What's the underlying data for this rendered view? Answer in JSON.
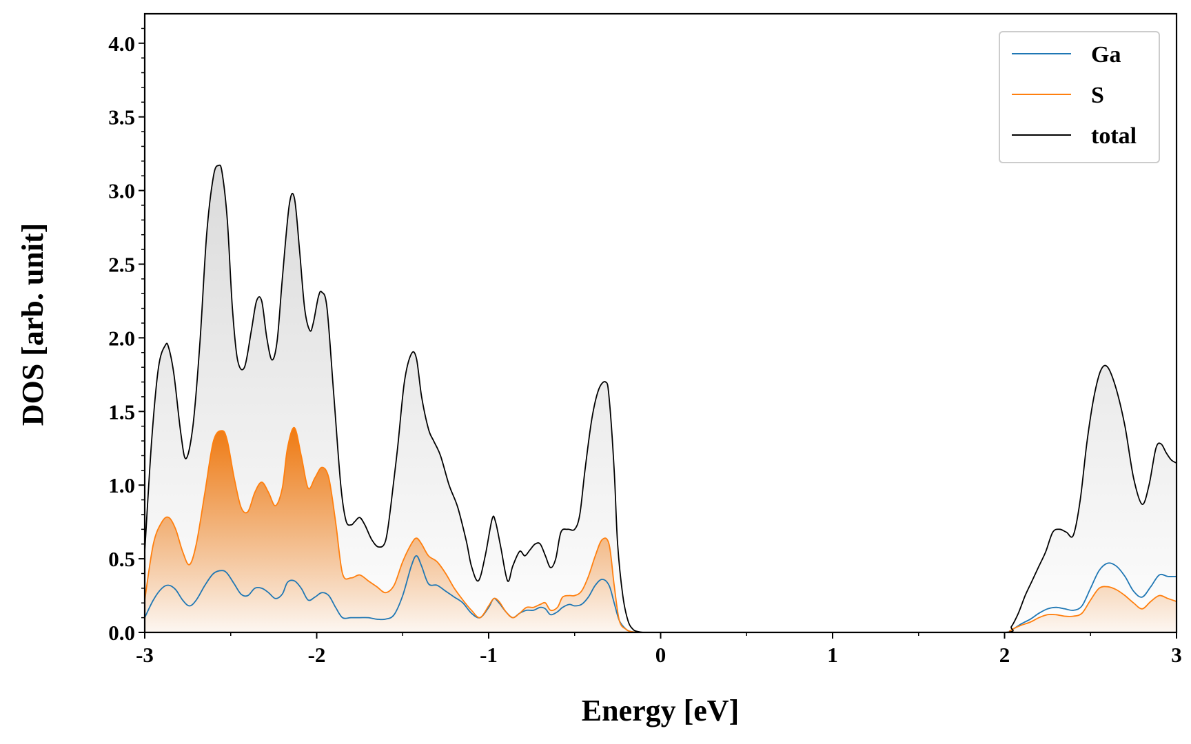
{
  "chart_data": {
    "type": "line",
    "title": "",
    "xlabel": "Energy [eV]",
    "ylabel": "DOS [arb. unit]",
    "xlim": [
      -3,
      3
    ],
    "ylim": [
      0,
      4.2
    ],
    "x_ticks": [
      -3,
      -2,
      -1,
      0,
      1,
      2,
      3
    ],
    "x_tick_labels": [
      "-3",
      "-2",
      "-1",
      "0",
      "1",
      "2",
      "3"
    ],
    "y_ticks": [
      0.0,
      0.5,
      1.0,
      1.5,
      2.0,
      2.5,
      3.0,
      3.5,
      4.0
    ],
    "y_tick_labels": [
      "0.0",
      "0.5",
      "1.0",
      "1.5",
      "2.0",
      "2.5",
      "3.0",
      "3.5",
      "4.0"
    ],
    "grid": false,
    "legend_position": "top-right",
    "series": [
      {
        "name": "Ga",
        "color": "#1f77b4",
        "fill": false,
        "x": [
          -3.0,
          -2.95,
          -2.9,
          -2.86,
          -2.82,
          -2.78,
          -2.74,
          -2.7,
          -2.65,
          -2.6,
          -2.55,
          -2.52,
          -2.48,
          -2.44,
          -2.4,
          -2.36,
          -2.32,
          -2.28,
          -2.24,
          -2.2,
          -2.17,
          -2.13,
          -2.09,
          -2.05,
          -2.01,
          -1.97,
          -1.93,
          -1.89,
          -1.85,
          -1.8,
          -1.75,
          -1.7,
          -1.65,
          -1.6,
          -1.55,
          -1.5,
          -1.45,
          -1.42,
          -1.39,
          -1.35,
          -1.3,
          -1.25,
          -1.2,
          -1.15,
          -1.1,
          -1.05,
          -1.0,
          -0.97,
          -0.94,
          -0.9,
          -0.86,
          -0.82,
          -0.78,
          -0.74,
          -0.7,
          -0.67,
          -0.64,
          -0.6,
          -0.57,
          -0.53,
          -0.5,
          -0.46,
          -0.42,
          -0.38,
          -0.34,
          -0.3,
          -0.27,
          -0.24,
          -0.2,
          -0.17,
          -0.13,
          -0.1,
          -0.05,
          0.0,
          0.5,
          1.0,
          1.5,
          2.0,
          2.03,
          2.06,
          2.1,
          2.15,
          2.2,
          2.25,
          2.3,
          2.35,
          2.4,
          2.45,
          2.5,
          2.55,
          2.6,
          2.65,
          2.7,
          2.75,
          2.8,
          2.85,
          2.9,
          2.95,
          3.0
        ],
        "values": [
          0.1,
          0.22,
          0.3,
          0.32,
          0.29,
          0.22,
          0.18,
          0.22,
          0.32,
          0.4,
          0.42,
          0.4,
          0.33,
          0.26,
          0.25,
          0.3,
          0.3,
          0.27,
          0.23,
          0.26,
          0.34,
          0.35,
          0.3,
          0.22,
          0.24,
          0.27,
          0.25,
          0.17,
          0.1,
          0.1,
          0.1,
          0.1,
          0.09,
          0.09,
          0.12,
          0.25,
          0.45,
          0.52,
          0.45,
          0.33,
          0.32,
          0.28,
          0.24,
          0.2,
          0.13,
          0.1,
          0.17,
          0.23,
          0.2,
          0.14,
          0.1,
          0.13,
          0.15,
          0.15,
          0.17,
          0.16,
          0.12,
          0.14,
          0.17,
          0.19,
          0.18,
          0.19,
          0.24,
          0.32,
          0.36,
          0.32,
          0.2,
          0.08,
          0.02,
          0.005,
          0.0,
          0.0,
          0.0,
          0.0,
          0.0,
          0.0,
          0.0,
          0.0,
          0.01,
          0.03,
          0.06,
          0.09,
          0.13,
          0.16,
          0.17,
          0.16,
          0.15,
          0.18,
          0.3,
          0.42,
          0.47,
          0.45,
          0.38,
          0.28,
          0.24,
          0.31,
          0.39,
          0.38,
          0.38
        ]
      },
      {
        "name": "S",
        "color": "#ff7f0e",
        "fill": true,
        "x": [
          -3.0,
          -2.95,
          -2.9,
          -2.86,
          -2.82,
          -2.78,
          -2.74,
          -2.7,
          -2.65,
          -2.6,
          -2.55,
          -2.52,
          -2.48,
          -2.44,
          -2.4,
          -2.36,
          -2.32,
          -2.28,
          -2.24,
          -2.2,
          -2.17,
          -2.13,
          -2.09,
          -2.05,
          -2.01,
          -1.97,
          -1.93,
          -1.89,
          -1.85,
          -1.8,
          -1.75,
          -1.7,
          -1.65,
          -1.6,
          -1.55,
          -1.5,
          -1.45,
          -1.42,
          -1.39,
          -1.35,
          -1.3,
          -1.25,
          -1.2,
          -1.15,
          -1.1,
          -1.05,
          -1.0,
          -0.97,
          -0.94,
          -0.9,
          -0.86,
          -0.82,
          -0.78,
          -0.74,
          -0.7,
          -0.67,
          -0.64,
          -0.6,
          -0.57,
          -0.53,
          -0.5,
          -0.46,
          -0.42,
          -0.38,
          -0.34,
          -0.3,
          -0.27,
          -0.24,
          -0.2,
          -0.17,
          -0.13,
          -0.1,
          -0.05,
          0.0,
          0.5,
          1.0,
          1.5,
          2.0,
          2.03,
          2.06,
          2.1,
          2.15,
          2.2,
          2.25,
          2.3,
          2.35,
          2.4,
          2.45,
          2.5,
          2.55,
          2.6,
          2.65,
          2.7,
          2.75,
          2.8,
          2.85,
          2.9,
          2.95,
          3.0
        ],
        "values": [
          0.22,
          0.6,
          0.75,
          0.78,
          0.7,
          0.55,
          0.46,
          0.6,
          0.95,
          1.3,
          1.37,
          1.3,
          1.05,
          0.85,
          0.82,
          0.95,
          1.02,
          0.95,
          0.86,
          0.98,
          1.25,
          1.39,
          1.2,
          0.98,
          1.05,
          1.12,
          1.05,
          0.75,
          0.4,
          0.37,
          0.39,
          0.35,
          0.31,
          0.27,
          0.32,
          0.48,
          0.6,
          0.64,
          0.6,
          0.52,
          0.48,
          0.4,
          0.3,
          0.22,
          0.15,
          0.1,
          0.18,
          0.23,
          0.21,
          0.14,
          0.1,
          0.13,
          0.17,
          0.17,
          0.19,
          0.2,
          0.15,
          0.17,
          0.24,
          0.25,
          0.25,
          0.28,
          0.38,
          0.52,
          0.63,
          0.6,
          0.32,
          0.08,
          0.02,
          0.005,
          0.0,
          0.0,
          0.0,
          0.0,
          0.0,
          0.0,
          0.0,
          0.0,
          0.01,
          0.03,
          0.05,
          0.07,
          0.1,
          0.12,
          0.12,
          0.11,
          0.11,
          0.13,
          0.22,
          0.3,
          0.31,
          0.29,
          0.25,
          0.2,
          0.16,
          0.21,
          0.25,
          0.23,
          0.21
        ]
      },
      {
        "name": "total",
        "color": "#000000",
        "fill": true,
        "x": [
          -3.0,
          -2.96,
          -2.92,
          -2.88,
          -2.86,
          -2.83,
          -2.79,
          -2.76,
          -2.72,
          -2.68,
          -2.64,
          -2.6,
          -2.57,
          -2.55,
          -2.52,
          -2.49,
          -2.46,
          -2.42,
          -2.38,
          -2.35,
          -2.32,
          -2.29,
          -2.26,
          -2.23,
          -2.2,
          -2.16,
          -2.13,
          -2.1,
          -2.07,
          -2.04,
          -2.02,
          -1.99,
          -1.97,
          -1.94,
          -1.9,
          -1.86,
          -1.83,
          -1.8,
          -1.78,
          -1.75,
          -1.72,
          -1.68,
          -1.64,
          -1.6,
          -1.57,
          -1.53,
          -1.49,
          -1.45,
          -1.42,
          -1.39,
          -1.35,
          -1.32,
          -1.28,
          -1.23,
          -1.18,
          -1.13,
          -1.1,
          -1.06,
          -1.02,
          -0.98,
          -0.96,
          -0.93,
          -0.89,
          -0.86,
          -0.82,
          -0.79,
          -0.76,
          -0.73,
          -0.7,
          -0.67,
          -0.64,
          -0.61,
          -0.58,
          -0.54,
          -0.5,
          -0.47,
          -0.44,
          -0.4,
          -0.36,
          -0.32,
          -0.3,
          -0.27,
          -0.25,
          -0.22,
          -0.19,
          -0.16,
          -0.13,
          -0.1,
          -0.05,
          0.0,
          0.5,
          1.0,
          1.5,
          2.0,
          2.04,
          2.08,
          2.12,
          2.16,
          2.2,
          2.24,
          2.28,
          2.32,
          2.36,
          2.4,
          2.44,
          2.48,
          2.52,
          2.56,
          2.6,
          2.65,
          2.7,
          2.75,
          2.8,
          2.84,
          2.88,
          2.91,
          2.94,
          2.97,
          3.0
        ],
        "values": [
          0.55,
          1.3,
          1.8,
          1.95,
          1.93,
          1.75,
          1.35,
          1.18,
          1.4,
          1.95,
          2.7,
          3.1,
          3.17,
          3.12,
          2.8,
          2.2,
          1.85,
          1.8,
          2.05,
          2.25,
          2.25,
          2.0,
          1.85,
          1.98,
          2.4,
          2.9,
          2.95,
          2.6,
          2.2,
          2.05,
          2.1,
          2.28,
          2.31,
          2.2,
          1.6,
          1.0,
          0.76,
          0.73,
          0.75,
          0.78,
          0.73,
          0.63,
          0.58,
          0.62,
          0.85,
          1.25,
          1.7,
          1.89,
          1.86,
          1.6,
          1.38,
          1.3,
          1.2,
          1.0,
          0.85,
          0.62,
          0.45,
          0.35,
          0.52,
          0.77,
          0.75,
          0.58,
          0.35,
          0.45,
          0.55,
          0.52,
          0.56,
          0.6,
          0.6,
          0.52,
          0.44,
          0.5,
          0.68,
          0.7,
          0.7,
          0.8,
          1.1,
          1.45,
          1.65,
          1.7,
          1.6,
          1.1,
          0.6,
          0.25,
          0.08,
          0.02,
          0.005,
          0.0,
          0.0,
          0.0,
          0.0,
          0.0,
          0.0,
          0.0,
          0.04,
          0.13,
          0.25,
          0.35,
          0.45,
          0.55,
          0.68,
          0.7,
          0.68,
          0.66,
          0.9,
          1.3,
          1.6,
          1.78,
          1.8,
          1.65,
          1.4,
          1.05,
          0.87,
          1.0,
          1.25,
          1.28,
          1.22,
          1.17,
          1.15
        ]
      }
    ]
  }
}
